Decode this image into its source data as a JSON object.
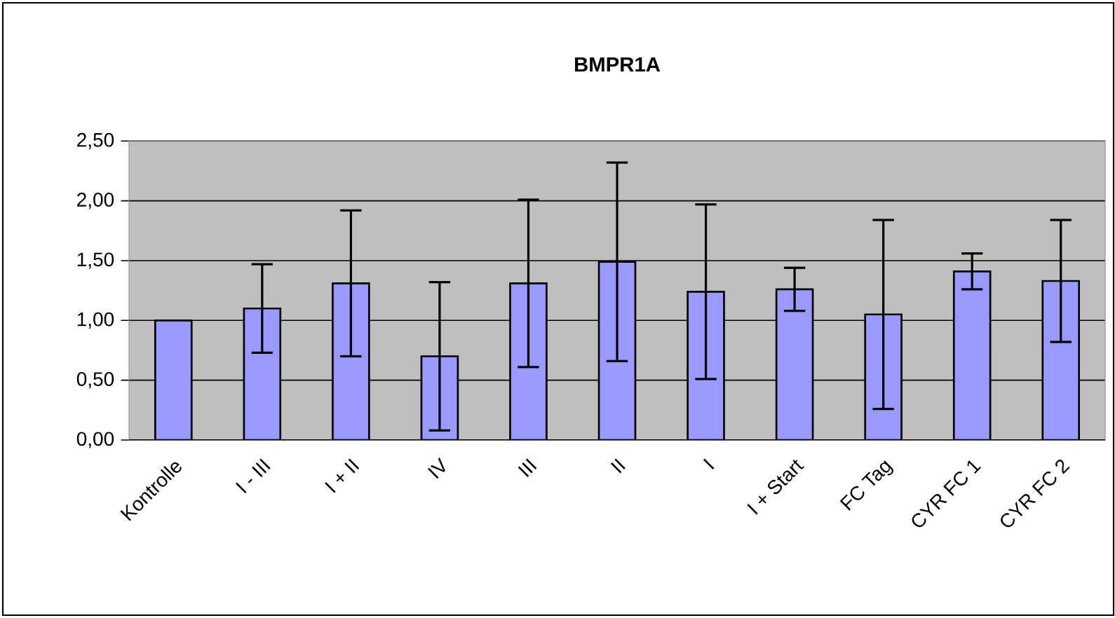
{
  "chart_data": {
    "type": "bar",
    "title": "BMPR1A",
    "categories": [
      "Kontrolle",
      "I - III",
      "I + II",
      "IV",
      "III",
      "II",
      "I",
      "I + Start",
      "FC Tag",
      "CYR FC 1",
      "CYR FC 2"
    ],
    "values": [
      1.0,
      1.1,
      1.31,
      0.7,
      1.31,
      1.49,
      1.24,
      1.26,
      1.05,
      1.41,
      1.33
    ],
    "errors": [
      null,
      0.37,
      0.61,
      0.62,
      0.7,
      0.83,
      0.73,
      0.18,
      0.79,
      0.15,
      0.51
    ],
    "color": "#9999ff",
    "ylim": [
      0,
      2.5
    ],
    "yticks": [
      {
        "value": 0,
        "label": "0,00"
      },
      {
        "value": 0.5,
        "label": "0,50"
      },
      {
        "value": 1.0,
        "label": "1,00"
      },
      {
        "value": 1.5,
        "label": "1,50"
      },
      {
        "value": 2.0,
        "label": "2,00"
      },
      {
        "value": 2.5,
        "label": "2,50"
      }
    ],
    "grid": "y"
  }
}
